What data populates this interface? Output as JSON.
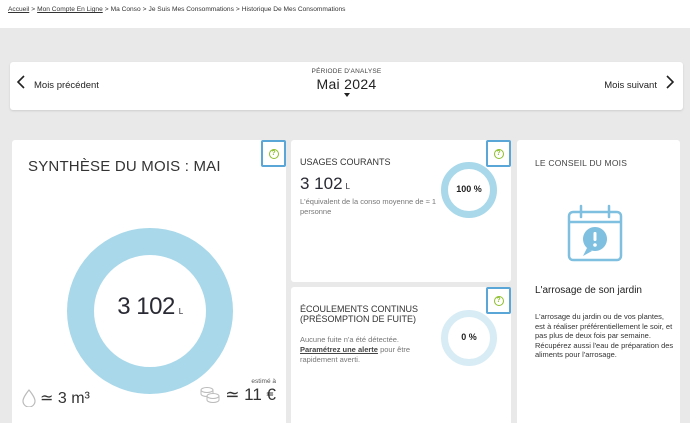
{
  "breadcrumb": {
    "items": [
      "Accueil",
      "Mon Compte En Ligne",
      "Ma Conso",
      "Je Suis Mes Consommations",
      "Historique De Mes Consommations"
    ]
  },
  "period": {
    "label": "PÉRIODE D'ANALYSE",
    "value": "Mai 2024",
    "prev_label": "Mois précédent",
    "next_label": "Mois suivant"
  },
  "synthese": {
    "title": "SYNTHÈSE DU MOIS : MAI",
    "value": "3 102",
    "unit": "L",
    "volume": "≃ 3 m³",
    "estimate_label": "estimé à",
    "cost": "≃ 11 €"
  },
  "usages": {
    "title": "USAGES COURANTS",
    "value": "3 102",
    "unit": "L",
    "desc": "L'équivalent de la conso moyenne de ≈ 1 personne",
    "percent": "100 %"
  },
  "ecoulements": {
    "title_line1": "ÉCOULEMENTS CONTINUS",
    "title_line2": "(PRÉSOMPTION DE FUITE)",
    "desc_prefix": "Aucune fuite n'a été détectée.",
    "link": "Paramétrez une alerte",
    "desc_suffix": "pour être rapidement averti.",
    "percent": "0 %"
  },
  "conseil": {
    "title": "LE CONSEIL DU MOIS",
    "subtitle": "L'arrosage de son jardin",
    "body": "L'arrosage du jardin ou de vos plantes, est à réaliser préférentiellement le soir, et pas plus de deux fois par semaine. Récupérez aussi l'eau de préparation des aliments pour l'arrosage."
  },
  "colors": {
    "donut_main": "#a8d8ea",
    "donut_light": "#d8ecf5",
    "help_border": "#5aa6d6",
    "help_icon": "#8cbe2a"
  }
}
